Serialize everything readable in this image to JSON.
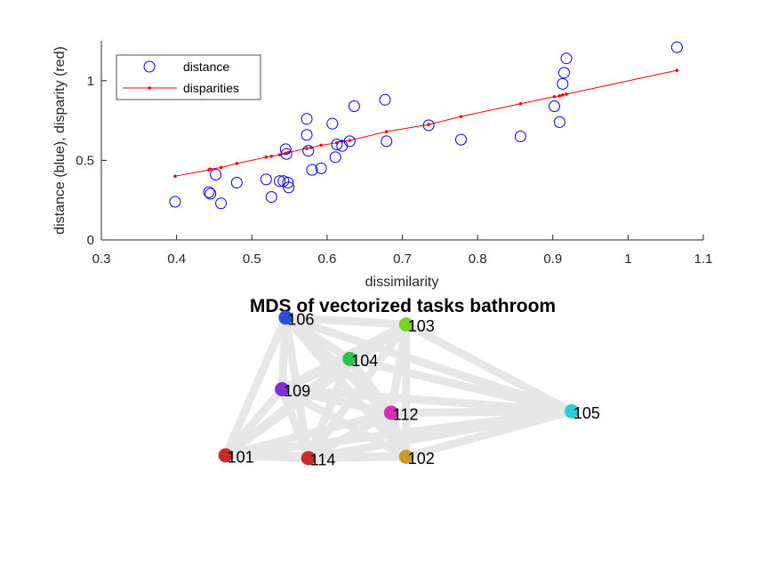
{
  "chart_data": [
    {
      "type": "scatter",
      "title": "",
      "xlabel": "dissimilarity",
      "ylabel": "distance (blue), disparity (red)",
      "xlim": [
        0.3,
        1.1
      ],
      "ylim": [
        0,
        1.25
      ],
      "xticks": [
        "0.3",
        "0.4",
        "0.5",
        "0.6",
        "0.7",
        "0.8",
        "0.9",
        "1",
        "1.1"
      ],
      "yticks": [
        "0",
        "0.5",
        "1"
      ],
      "grid": false,
      "legend_position": "top-left",
      "series": [
        {
          "name": "distance",
          "marker": "open-circle",
          "color": "#0000ff",
          "points": [
            [
              0.398,
              0.24
            ],
            [
              0.443,
              0.3
            ],
            [
              0.445,
              0.29
            ],
            [
              0.452,
              0.41
            ],
            [
              0.459,
              0.23
            ],
            [
              0.48,
              0.36
            ],
            [
              0.519,
              0.38
            ],
            [
              0.526,
              0.27
            ],
            [
              0.537,
              0.37
            ],
            [
              0.542,
              0.37
            ],
            [
              0.545,
              0.57
            ],
            [
              0.546,
              0.54
            ],
            [
              0.548,
              0.36
            ],
            [
              0.549,
              0.33
            ],
            [
              0.573,
              0.76
            ],
            [
              0.573,
              0.66
            ],
            [
              0.575,
              0.56
            ],
            [
              0.58,
              0.44
            ],
            [
              0.592,
              0.45
            ],
            [
              0.607,
              0.73
            ],
            [
              0.611,
              0.52
            ],
            [
              0.613,
              0.6
            ],
            [
              0.62,
              0.59
            ],
            [
              0.63,
              0.62
            ],
            [
              0.636,
              0.84
            ],
            [
              0.677,
              0.88
            ],
            [
              0.679,
              0.62
            ],
            [
              0.735,
              0.72
            ],
            [
              0.778,
              0.63
            ],
            [
              0.857,
              0.65
            ],
            [
              0.902,
              0.84
            ],
            [
              0.909,
              0.74
            ],
            [
              0.913,
              0.98
            ],
            [
              0.915,
              1.05
            ],
            [
              0.918,
              1.14
            ],
            [
              1.065,
              1.21
            ]
          ]
        },
        {
          "name": "disparities",
          "marker": "dot-line",
          "color": "#ff0000",
          "points": [
            [
              0.398,
              0.4
            ],
            [
              0.443,
              0.44
            ],
            [
              0.445,
              0.445
            ],
            [
              0.459,
              0.455
            ],
            [
              0.48,
              0.48
            ],
            [
              0.519,
              0.52
            ],
            [
              0.526,
              0.525
            ],
            [
              0.537,
              0.535
            ],
            [
              0.545,
              0.545
            ],
            [
              0.549,
              0.55
            ],
            [
              0.573,
              0.575
            ],
            [
              0.579,
              0.58
            ],
            [
              0.592,
              0.595
            ],
            [
              0.613,
              0.61
            ],
            [
              0.62,
              0.62
            ],
            [
              0.63,
              0.625
            ],
            [
              0.679,
              0.68
            ],
            [
              0.735,
              0.725
            ],
            [
              0.778,
              0.775
            ],
            [
              0.857,
              0.855
            ],
            [
              0.902,
              0.9
            ],
            [
              0.909,
              0.905
            ],
            [
              0.913,
              0.91
            ],
            [
              0.918,
              0.915
            ],
            [
              1.065,
              1.065
            ]
          ]
        }
      ]
    },
    {
      "type": "network",
      "title": "MDS of vectorized tasks bathroom",
      "edge_color": "#e6e6e6",
      "nodes": [
        {
          "id": "106",
          "x": 0.545,
          "y": 0.96,
          "color": "#2d4fd6"
        },
        {
          "id": "103",
          "x": 0.705,
          "y": 0.935,
          "color": "#7bd02a"
        },
        {
          "id": "104",
          "x": 0.63,
          "y": 0.81,
          "color": "#2fc24c"
        },
        {
          "id": "109",
          "x": 0.54,
          "y": 0.7,
          "color": "#7d2fd4"
        },
        {
          "id": "112",
          "x": 0.685,
          "y": 0.615,
          "color": "#d42fb5"
        },
        {
          "id": "105",
          "x": 0.925,
          "y": 0.62,
          "color": "#2ccfcf"
        },
        {
          "id": "101",
          "x": 0.465,
          "y": 0.46,
          "color": "#c42d2d"
        },
        {
          "id": "114",
          "x": 0.575,
          "y": 0.45,
          "color": "#c42d2d"
        },
        {
          "id": "102",
          "x": 0.705,
          "y": 0.455,
          "color": "#c99a2b"
        }
      ]
    }
  ]
}
